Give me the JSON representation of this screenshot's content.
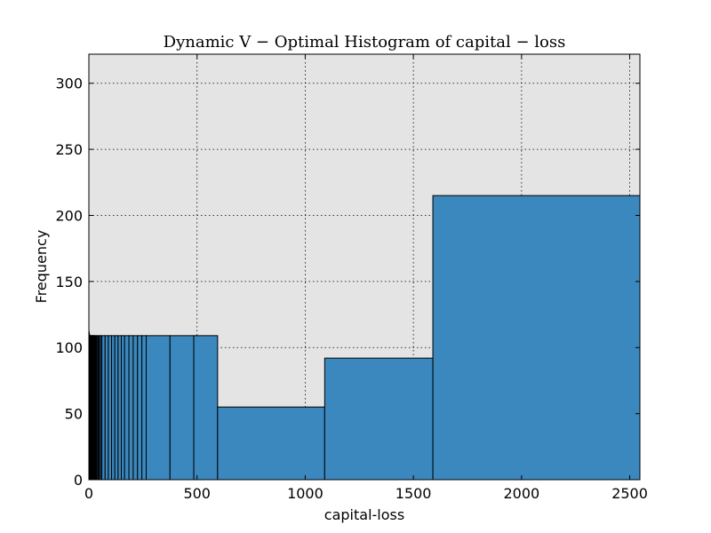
{
  "chart_data": {
    "type": "bar",
    "title": "Dynamic V − Optimal Histogram of capital − loss",
    "xlabel": "capital-loss",
    "ylabel": "Frequency",
    "xlim": [
      0,
      2547
    ],
    "ylim": [
      0,
      322
    ],
    "grid": true,
    "background": "#e4e4e4",
    "bar_color": "#3a88be",
    "edge_color": "#000000",
    "xticks": [
      0,
      500,
      1000,
      1500,
      2000,
      2500
    ],
    "yticks": [
      0,
      50,
      100,
      150,
      200,
      250,
      300
    ],
    "bins": [
      {
        "x0": 0,
        "x1": 1,
        "value": 112
      },
      {
        "x0": 1,
        "x1": 2,
        "value": 111
      },
      {
        "x0": 2,
        "x1": 3,
        "value": 110
      },
      {
        "x0": 3,
        "x1": 5,
        "value": 109
      },
      {
        "x0": 5,
        "x1": 7,
        "value": 109
      },
      {
        "x0": 7,
        "x1": 9,
        "value": 109
      },
      {
        "x0": 9,
        "x1": 11,
        "value": 109
      },
      {
        "x0": 11,
        "x1": 13,
        "value": 109
      },
      {
        "x0": 13,
        "x1": 15,
        "value": 109
      },
      {
        "x0": 15,
        "x1": 17,
        "value": 109
      },
      {
        "x0": 17,
        "x1": 19,
        "value": 109
      },
      {
        "x0": 19,
        "x1": 21,
        "value": 109
      },
      {
        "x0": 21,
        "x1": 24,
        "value": 109
      },
      {
        "x0": 24,
        "x1": 27,
        "value": 109
      },
      {
        "x0": 27,
        "x1": 30,
        "value": 109
      },
      {
        "x0": 30,
        "x1": 34,
        "value": 109
      },
      {
        "x0": 34,
        "x1": 38,
        "value": 109
      },
      {
        "x0": 38,
        "x1": 43,
        "value": 109
      },
      {
        "x0": 43,
        "x1": 48,
        "value": 109
      },
      {
        "x0": 48,
        "x1": 54,
        "value": 109
      },
      {
        "x0": 54,
        "x1": 60,
        "value": 109
      },
      {
        "x0": 60,
        "x1": 75,
        "value": 109
      },
      {
        "x0": 75,
        "x1": 90,
        "value": 109
      },
      {
        "x0": 90,
        "x1": 105,
        "value": 109
      },
      {
        "x0": 105,
        "x1": 120,
        "value": 109
      },
      {
        "x0": 120,
        "x1": 135,
        "value": 109
      },
      {
        "x0": 135,
        "x1": 150,
        "value": 109
      },
      {
        "x0": 150,
        "x1": 165,
        "value": 109
      },
      {
        "x0": 165,
        "x1": 185,
        "value": 109
      },
      {
        "x0": 185,
        "x1": 205,
        "value": 109
      },
      {
        "x0": 205,
        "x1": 225,
        "value": 109
      },
      {
        "x0": 225,
        "x1": 245,
        "value": 109
      },
      {
        "x0": 245,
        "x1": 265,
        "value": 109
      },
      {
        "x0": 265,
        "x1": 375,
        "value": 109
      },
      {
        "x0": 375,
        "x1": 485,
        "value": 109
      },
      {
        "x0": 485,
        "x1": 595,
        "value": 109
      },
      {
        "x0": 595,
        "x1": 1090,
        "value": 55
      },
      {
        "x0": 1090,
        "x1": 1590,
        "value": 92
      },
      {
        "x0": 1590,
        "x1": 2547,
        "value": 215
      }
    ]
  }
}
